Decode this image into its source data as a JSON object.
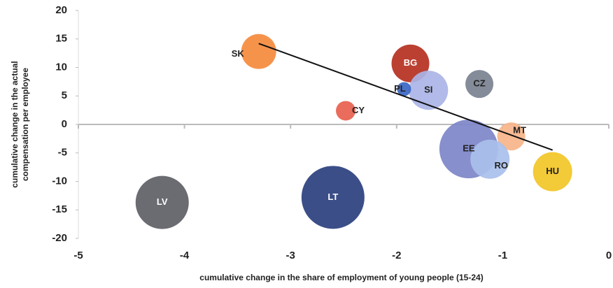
{
  "chart_data": {
    "type": "bubble",
    "x_label": "cumulative change in the share of employment of young people (15-24)",
    "y_label": [
      "cumulative change in the actual",
      "compensation per employee"
    ],
    "xlim": [
      -5,
      0
    ],
    "xticks": [
      -5,
      -4,
      -3,
      -2,
      -1,
      0
    ],
    "ylim": [
      -20,
      20
    ],
    "yticks": [
      -20,
      -15,
      -10,
      -5,
      0,
      5,
      10,
      15,
      20
    ],
    "points": [
      {
        "label": "SK",
        "x": -3.3,
        "y": 12.8,
        "size": 25,
        "color": "#f58a3c",
        "label_color": "#222"
      },
      {
        "label": "BG",
        "x": -1.87,
        "y": 10.7,
        "size": 27,
        "color": "#b5301f",
        "label_color": "#fff"
      },
      {
        "label": "SI",
        "x": -1.7,
        "y": 6.0,
        "size": 28,
        "color": "#aab4e6",
        "label_color": "#222"
      },
      {
        "label": "PL",
        "x": -1.93,
        "y": 6.2,
        "size": 10,
        "color": "#3a66c4",
        "label_color": "#222"
      },
      {
        "label": "CZ",
        "x": -1.22,
        "y": 7.1,
        "size": 20,
        "color": "#7a8290",
        "label_color": "#222"
      },
      {
        "label": "CY",
        "x": -2.48,
        "y": 2.4,
        "size": 14,
        "color": "#e8604e",
        "label_color": "#222"
      },
      {
        "label": "MT",
        "x": -0.92,
        "y": -2.1,
        "size": 20,
        "color": "#f6b48a",
        "label_color": "#222"
      },
      {
        "label": "EE",
        "x": -1.32,
        "y": -4.3,
        "size": 42,
        "color": "#7d86c8",
        "label_color": "#222"
      },
      {
        "label": "RO",
        "x": -1.12,
        "y": -6.1,
        "size": 28,
        "color": "#a9c0ec",
        "label_color": "#222"
      },
      {
        "label": "HU",
        "x": -0.53,
        "y": -8.3,
        "size": 28,
        "color": "#f2c526",
        "label_color": "#222"
      },
      {
        "label": "LV",
        "x": -4.21,
        "y": -13.7,
        "size": 38,
        "color": "#5e5f66",
        "label_color": "#fff"
      },
      {
        "label": "LT",
        "x": -2.6,
        "y": -12.8,
        "size": 45,
        "color": "#2a3f7e",
        "label_color": "#fff"
      }
    ],
    "trendline": {
      "x": [
        -3.3,
        -0.53
      ],
      "y": [
        14.2,
        -4.5
      ],
      "color": "#111"
    }
  }
}
